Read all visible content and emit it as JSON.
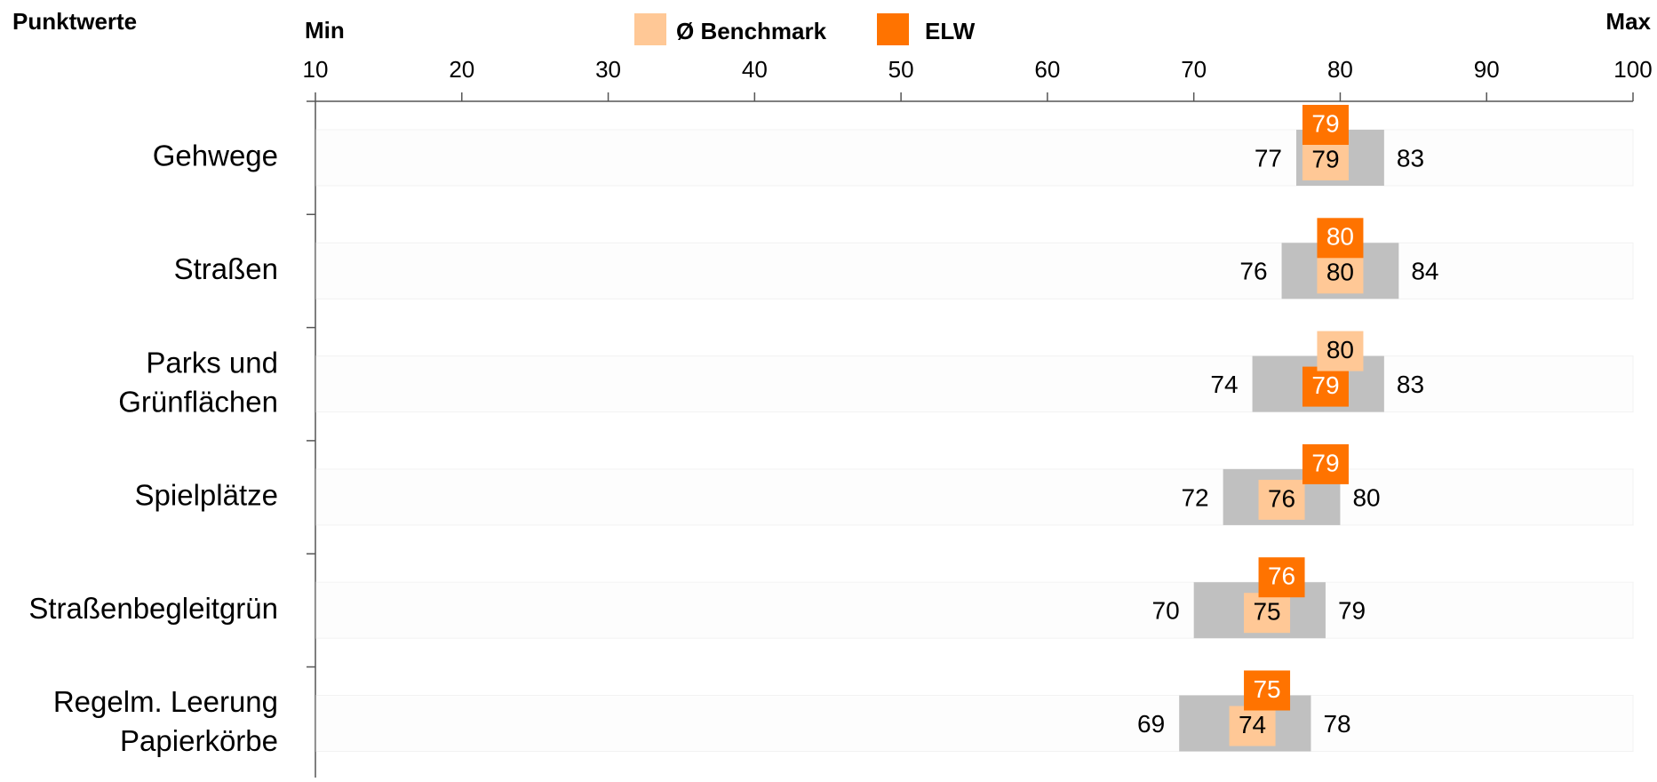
{
  "chart_data": {
    "type": "range_bar",
    "title": "Punktwerte",
    "x_label_left": "Min",
    "x_label_right": "Max",
    "categories": [
      [
        "Gehwege"
      ],
      [
        "Straßen"
      ],
      [
        "Parks und",
        "Grünflächen"
      ],
      [
        "Spielplätze"
      ],
      [
        "Straßenbegleitgrün"
      ],
      [
        "Regelm. Leerung",
        "Papierkörbe"
      ]
    ],
    "range_color": "#c0c0c0",
    "min_values": [
      77,
      76,
      74,
      72,
      70,
      69
    ],
    "max_values": [
      83,
      84,
      83,
      80,
      79,
      78
    ],
    "series": [
      {
        "name": "Ø Benchmark",
        "color": "#ffc896",
        "values": [
          79,
          80,
          80,
          76,
          75,
          74
        ]
      },
      {
        "name": "ELW",
        "color": "#ff7300",
        "values": [
          79,
          80,
          79,
          79,
          76,
          75
        ]
      }
    ],
    "xlim": [
      10,
      100
    ],
    "xticks": [
      10,
      20,
      30,
      40,
      50,
      60,
      70,
      80,
      90,
      100
    ]
  }
}
